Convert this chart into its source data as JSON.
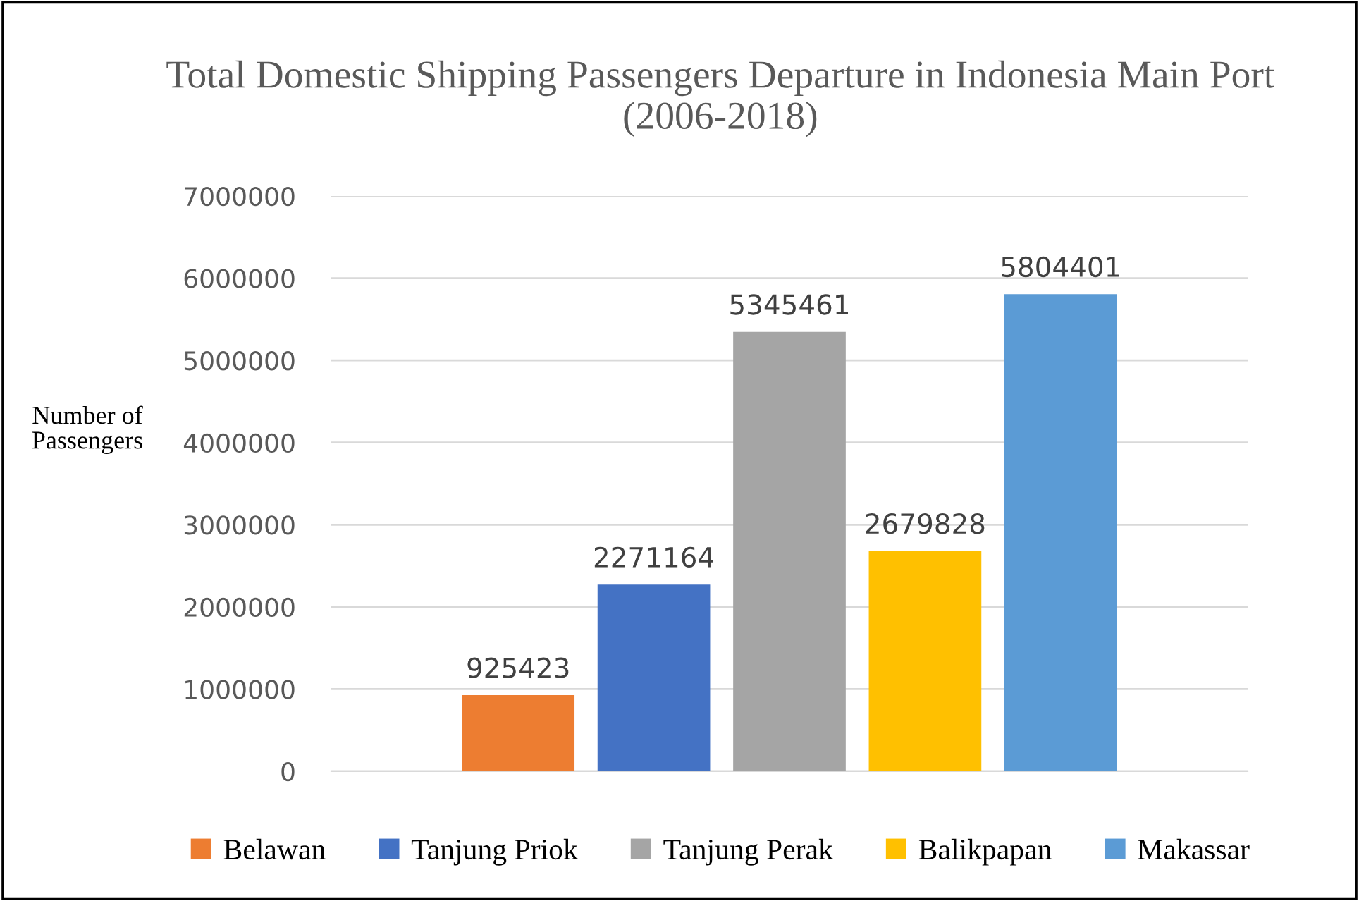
{
  "chart_data": {
    "type": "bar",
    "title": "Total Domestic Shipping Passengers Departure in Indonesia Main Port (2006-2018)",
    "ylabel": "Number of\nPassengers",
    "categories": [
      null
    ],
    "series": [
      {
        "name": "Belawan",
        "color": "#ed7d31",
        "values": [
          925423
        ]
      },
      {
        "name": "Tanjung Priok",
        "color": "#4472c4",
        "values": [
          2271164
        ]
      },
      {
        "name": "Tanjung Perak",
        "color": "#a5a5a5",
        "values": [
          5345461
        ]
      },
      {
        "name": "Balikpapan",
        "color": "#ffc000",
        "values": [
          2679828
        ]
      },
      {
        "name": "Makassar",
        "color": "#5b9bd5",
        "values": [
          5804401
        ]
      }
    ],
    "ylim": [
      0,
      7000000
    ],
    "yticks": [
      0,
      1000000,
      2000000,
      3000000,
      4000000,
      5000000,
      6000000,
      7000000
    ],
    "grid": "y",
    "legend": "bottom",
    "data_labels": true
  }
}
